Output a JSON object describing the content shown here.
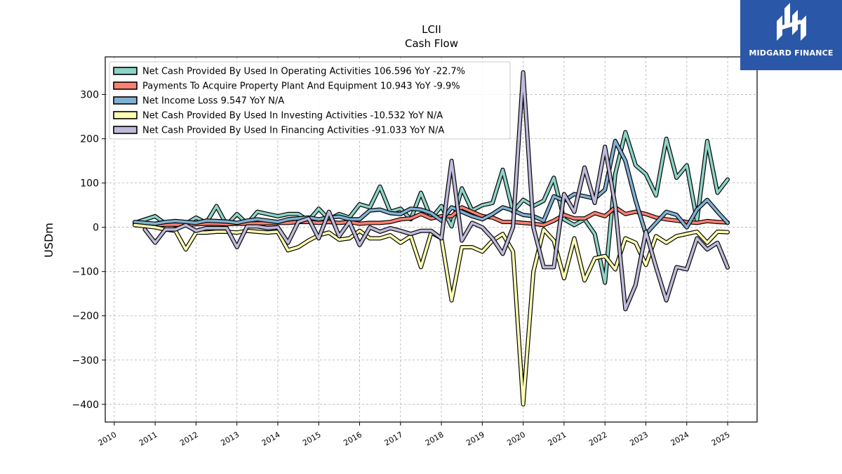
{
  "chart_data": {
    "type": "line",
    "title": "LCII",
    "subtitle": "Cash Flow",
    "ylabel": "USDm",
    "xlabel": "",
    "xlim": [
      2009.78,
      2025.72
    ],
    "ylim": [
      -440,
      385
    ],
    "yticks": [
      -400,
      -300,
      -200,
      -100,
      0,
      100,
      200,
      300
    ],
    "ytick_labels": [
      "−400",
      "−300",
      "−200",
      "−100",
      "0",
      "100",
      "200",
      "300"
    ],
    "xticks": [
      "2010",
      "2011",
      "2012",
      "2013",
      "2014",
      "2015",
      "2016",
      "2017",
      "2018",
      "2019",
      "2020",
      "2021",
      "2022",
      "2023",
      "2024",
      "2025"
    ],
    "grid": true,
    "legend_position": "top-left",
    "series": [
      {
        "name": "Net Cash Provided By Used In Operating Activities  106.596 YoY -22.7%",
        "color": "#8dd3c7",
        "points": [
          [
            2010.5,
            10
          ],
          [
            2011.0,
            25
          ],
          [
            2011.25,
            8
          ],
          [
            2011.5,
            5
          ],
          [
            2011.75,
            8
          ],
          [
            2012.0,
            22
          ],
          [
            2012.25,
            10
          ],
          [
            2012.5,
            48
          ],
          [
            2012.75,
            5
          ],
          [
            2013.0,
            30
          ],
          [
            2013.25,
            8
          ],
          [
            2013.5,
            35
          ],
          [
            2013.75,
            30
          ],
          [
            2014.0,
            25
          ],
          [
            2014.25,
            30
          ],
          [
            2014.5,
            30
          ],
          [
            2014.75,
            15
          ],
          [
            2015.0,
            42
          ],
          [
            2015.25,
            18
          ],
          [
            2015.5,
            30
          ],
          [
            2015.75,
            22
          ],
          [
            2016.0,
            52
          ],
          [
            2016.25,
            45
          ],
          [
            2016.5,
            92
          ],
          [
            2016.75,
            35
          ],
          [
            2017.0,
            42
          ],
          [
            2017.25,
            18
          ],
          [
            2017.5,
            78
          ],
          [
            2017.75,
            20
          ],
          [
            2018.0,
            48
          ],
          [
            2018.25,
            2
          ],
          [
            2018.5,
            88
          ],
          [
            2018.75,
            38
          ],
          [
            2019.0,
            50
          ],
          [
            2019.25,
            55
          ],
          [
            2019.5,
            130
          ],
          [
            2019.75,
            35
          ],
          [
            2020.0,
            62
          ],
          [
            2020.25,
            48
          ],
          [
            2020.5,
            60
          ],
          [
            2020.75,
            112
          ],
          [
            2021.0,
            18
          ],
          [
            2021.25,
            5
          ],
          [
            2021.5,
            18
          ],
          [
            2021.75,
            -15
          ],
          [
            2022.0,
            -125
          ],
          [
            2022.25,
            120
          ],
          [
            2022.5,
            215
          ],
          [
            2022.75,
            140
          ],
          [
            2023.0,
            120
          ],
          [
            2023.25,
            72
          ],
          [
            2023.5,
            200
          ],
          [
            2023.75,
            112
          ],
          [
            2024.0,
            140
          ],
          [
            2024.25,
            15
          ],
          [
            2024.5,
            195
          ],
          [
            2024.75,
            78
          ],
          [
            2025.0,
            108
          ]
        ]
      },
      {
        "name": "Payments To Acquire Property Plant And Equipment  10.943 YoY -9.9%",
        "color": "#fb8072",
        "points": [
          [
            2010.5,
            8
          ],
          [
            2011.0,
            5
          ],
          [
            2011.25,
            6
          ],
          [
            2011.5,
            6
          ],
          [
            2011.75,
            6
          ],
          [
            2012.0,
            7
          ],
          [
            2012.25,
            8
          ],
          [
            2012.5,
            8
          ],
          [
            2012.75,
            7
          ],
          [
            2013.0,
            8
          ],
          [
            2013.25,
            8
          ],
          [
            2013.5,
            9
          ],
          [
            2013.75,
            9
          ],
          [
            2014.0,
            10
          ],
          [
            2014.25,
            10
          ],
          [
            2014.5,
            12
          ],
          [
            2014.75,
            12
          ],
          [
            2015.0,
            10
          ],
          [
            2015.25,
            12
          ],
          [
            2015.5,
            10
          ],
          [
            2015.75,
            12
          ],
          [
            2016.0,
            8
          ],
          [
            2016.25,
            10
          ],
          [
            2016.5,
            10
          ],
          [
            2016.75,
            12
          ],
          [
            2017.0,
            18
          ],
          [
            2017.25,
            20
          ],
          [
            2017.5,
            30
          ],
          [
            2017.75,
            20
          ],
          [
            2018.0,
            25
          ],
          [
            2018.25,
            25
          ],
          [
            2018.5,
            45
          ],
          [
            2018.75,
            35
          ],
          [
            2019.0,
            25
          ],
          [
            2019.25,
            22
          ],
          [
            2019.5,
            12
          ],
          [
            2019.75,
            12
          ],
          [
            2020.0,
            10
          ],
          [
            2020.25,
            8
          ],
          [
            2020.5,
            5
          ],
          [
            2020.75,
            15
          ],
          [
            2021.0,
            28
          ],
          [
            2021.25,
            20
          ],
          [
            2021.5,
            20
          ],
          [
            2021.75,
            32
          ],
          [
            2022.0,
            25
          ],
          [
            2022.25,
            45
          ],
          [
            2022.5,
            30
          ],
          [
            2022.75,
            35
          ],
          [
            2023.0,
            30
          ],
          [
            2023.25,
            22
          ],
          [
            2023.5,
            18
          ],
          [
            2023.75,
            15
          ],
          [
            2024.0,
            12
          ],
          [
            2024.25,
            10
          ],
          [
            2024.5,
            14
          ],
          [
            2024.75,
            12
          ],
          [
            2025.0,
            11
          ]
        ]
      },
      {
        "name": "Net Income Loss  9.547 YoY N/A",
        "color": "#80b1d3",
        "points": [
          [
            2010.5,
            12
          ],
          [
            2011.0,
            8
          ],
          [
            2011.25,
            12
          ],
          [
            2011.5,
            14
          ],
          [
            2011.75,
            12
          ],
          [
            2012.0,
            10
          ],
          [
            2012.25,
            15
          ],
          [
            2012.5,
            14
          ],
          [
            2012.75,
            13
          ],
          [
            2013.0,
            10
          ],
          [
            2013.25,
            15
          ],
          [
            2013.5,
            18
          ],
          [
            2013.75,
            15
          ],
          [
            2014.0,
            12
          ],
          [
            2014.25,
            18
          ],
          [
            2014.5,
            20
          ],
          [
            2014.75,
            22
          ],
          [
            2015.0,
            18
          ],
          [
            2015.25,
            22
          ],
          [
            2015.5,
            24
          ],
          [
            2015.75,
            18
          ],
          [
            2016.0,
            18
          ],
          [
            2016.25,
            38
          ],
          [
            2016.5,
            40
          ],
          [
            2016.75,
            32
          ],
          [
            2017.0,
            30
          ],
          [
            2017.25,
            42
          ],
          [
            2017.5,
            40
          ],
          [
            2017.75,
            32
          ],
          [
            2018.0,
            15
          ],
          [
            2018.25,
            45
          ],
          [
            2018.5,
            35
          ],
          [
            2018.75,
            25
          ],
          [
            2019.0,
            18
          ],
          [
            2019.25,
            30
          ],
          [
            2019.5,
            45
          ],
          [
            2019.75,
            38
          ],
          [
            2020.0,
            28
          ],
          [
            2020.25,
            25
          ],
          [
            2020.5,
            15
          ],
          [
            2020.75,
            70
          ],
          [
            2021.0,
            60
          ],
          [
            2021.25,
            75
          ],
          [
            2021.5,
            70
          ],
          [
            2021.75,
            65
          ],
          [
            2022.0,
            85
          ],
          [
            2022.25,
            195
          ],
          [
            2022.5,
            150
          ],
          [
            2022.75,
            60
          ],
          [
            2023.0,
            -15
          ],
          [
            2023.25,
            10
          ],
          [
            2023.5,
            35
          ],
          [
            2023.75,
            28
          ],
          [
            2024.0,
            0
          ],
          [
            2024.25,
            40
          ],
          [
            2024.5,
            62
          ],
          [
            2024.75,
            35
          ],
          [
            2025.0,
            10
          ]
        ]
      },
      {
        "name": "Net Cash Provided By Used In Investing Activities  -10.532 YoY N/A",
        "color": "#ffffb3",
        "points": [
          [
            2010.5,
            5
          ],
          [
            2011.0,
            0
          ],
          [
            2011.25,
            -5
          ],
          [
            2011.5,
            -8
          ],
          [
            2011.75,
            -50
          ],
          [
            2012.0,
            -12
          ],
          [
            2012.25,
            -12
          ],
          [
            2012.5,
            -10
          ],
          [
            2012.75,
            -10
          ],
          [
            2013.0,
            -12
          ],
          [
            2013.25,
            -8
          ],
          [
            2013.5,
            -10
          ],
          [
            2013.75,
            -12
          ],
          [
            2014.0,
            -10
          ],
          [
            2014.25,
            -52
          ],
          [
            2014.5,
            -45
          ],
          [
            2014.75,
            -30
          ],
          [
            2015.0,
            -18
          ],
          [
            2015.25,
            -12
          ],
          [
            2015.5,
            -28
          ],
          [
            2015.75,
            -25
          ],
          [
            2016.0,
            -8
          ],
          [
            2016.25,
            -25
          ],
          [
            2016.5,
            -25
          ],
          [
            2016.75,
            -18
          ],
          [
            2017.0,
            -35
          ],
          [
            2017.25,
            -20
          ],
          [
            2017.5,
            -90
          ],
          [
            2017.75,
            -12
          ],
          [
            2018.0,
            -25
          ],
          [
            2018.25,
            -165
          ],
          [
            2018.5,
            -45
          ],
          [
            2018.75,
            -45
          ],
          [
            2019.0,
            -55
          ],
          [
            2019.25,
            -30
          ],
          [
            2019.5,
            -15
          ],
          [
            2019.75,
            -55
          ],
          [
            2020.0,
            -400
          ],
          [
            2020.25,
            -100
          ],
          [
            2020.5,
            -5
          ],
          [
            2020.75,
            -30
          ],
          [
            2021.0,
            -115
          ],
          [
            2021.25,
            -25
          ],
          [
            2021.5,
            -120
          ],
          [
            2021.75,
            -70
          ],
          [
            2022.0,
            -65
          ],
          [
            2022.25,
            -95
          ],
          [
            2022.5,
            -25
          ],
          [
            2022.75,
            -35
          ],
          [
            2023.0,
            -85
          ],
          [
            2023.25,
            -20
          ],
          [
            2023.5,
            -35
          ],
          [
            2023.75,
            -20
          ],
          [
            2024.0,
            -15
          ],
          [
            2024.25,
            -10
          ],
          [
            2024.5,
            -35
          ],
          [
            2024.75,
            -10
          ],
          [
            2025.0,
            -11
          ]
        ]
      },
      {
        "name": "Net Cash Provided By Used In Financing Activities  -91.033 YoY N/A",
        "color": "#bebada",
        "points": [
          [
            2010.75,
            -5
          ],
          [
            2011.0,
            -35
          ],
          [
            2011.25,
            -5
          ],
          [
            2011.5,
            -5
          ],
          [
            2011.75,
            5
          ],
          [
            2012.0,
            -8
          ],
          [
            2012.25,
            -2
          ],
          [
            2012.5,
            -2
          ],
          [
            2012.75,
            -2
          ],
          [
            2013.0,
            -45
          ],
          [
            2013.25,
            2
          ],
          [
            2013.5,
            2
          ],
          [
            2013.75,
            -2
          ],
          [
            2014.0,
            0
          ],
          [
            2014.25,
            -35
          ],
          [
            2014.5,
            12
          ],
          [
            2014.75,
            20
          ],
          [
            2015.0,
            -25
          ],
          [
            2015.25,
            35
          ],
          [
            2015.5,
            -20
          ],
          [
            2015.75,
            12
          ],
          [
            2016.0,
            -40
          ],
          [
            2016.25,
            0
          ],
          [
            2016.5,
            -10
          ],
          [
            2016.75,
            -2
          ],
          [
            2017.0,
            -8
          ],
          [
            2017.25,
            -15
          ],
          [
            2017.5,
            -8
          ],
          [
            2017.75,
            -8
          ],
          [
            2018.0,
            -25
          ],
          [
            2018.25,
            150
          ],
          [
            2018.5,
            -30
          ],
          [
            2018.75,
            10
          ],
          [
            2019.0,
            0
          ],
          [
            2019.25,
            -25
          ],
          [
            2019.5,
            -60
          ],
          [
            2019.75,
            0
          ],
          [
            2020.0,
            350
          ],
          [
            2020.25,
            0
          ],
          [
            2020.5,
            -90
          ],
          [
            2020.75,
            -90
          ],
          [
            2021.0,
            75
          ],
          [
            2021.25,
            35
          ],
          [
            2021.5,
            135
          ],
          [
            2021.75,
            55
          ],
          [
            2022.0,
            182
          ],
          [
            2022.25,
            50
          ],
          [
            2022.5,
            -185
          ],
          [
            2022.75,
            -130
          ],
          [
            2023.0,
            -10
          ],
          [
            2023.25,
            -90
          ],
          [
            2023.5,
            -165
          ],
          [
            2023.75,
            -90
          ],
          [
            2024.0,
            -95
          ],
          [
            2024.25,
            -25
          ],
          [
            2024.5,
            -50
          ],
          [
            2024.75,
            -35
          ],
          [
            2025.0,
            -91
          ]
        ]
      }
    ]
  },
  "brand": {
    "name": "MIDGARD FINANCE",
    "bg_color": "#2b57a8"
  }
}
